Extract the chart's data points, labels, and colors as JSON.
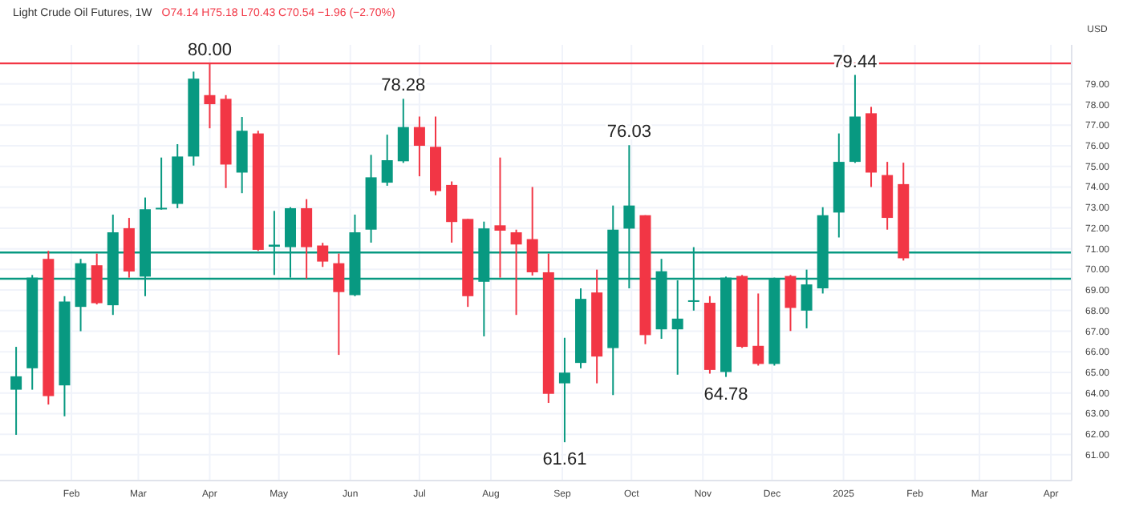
{
  "chart_data": {
    "type": "candlestick",
    "title": "Light Crude Oil Futures, 1W",
    "subtitle": "O74.14 H75.18 L70.43 C70.54 −1.96 (−2.70%)",
    "ylabel": "USD",
    "x": [
      "2024-01-08",
      "2024-01-15",
      "2024-01-22",
      "2024-01-29",
      "2024-02-05",
      "2024-02-12",
      "2024-02-19",
      "2024-02-26",
      "2024-03-04",
      "2024-03-11",
      "2024-03-18",
      "2024-03-25",
      "2024-04-01",
      "2024-04-08",
      "2024-04-15",
      "2024-04-22",
      "2024-04-29",
      "2024-05-06",
      "2024-05-13",
      "2024-05-20",
      "2024-05-27",
      "2024-06-03",
      "2024-06-10",
      "2024-06-17",
      "2024-06-24",
      "2024-07-01",
      "2024-07-08",
      "2024-07-15",
      "2024-07-22",
      "2024-07-29",
      "2024-08-05",
      "2024-08-12",
      "2024-08-19",
      "2024-08-26",
      "2024-09-02",
      "2024-09-09",
      "2024-09-16",
      "2024-09-23",
      "2024-09-30",
      "2024-10-07",
      "2024-10-14",
      "2024-10-21",
      "2024-10-28",
      "2024-11-04",
      "2024-11-11",
      "2024-11-18",
      "2024-11-25",
      "2024-12-02",
      "2024-12-09",
      "2024-12-16",
      "2024-12-23",
      "2024-12-30",
      "2025-01-06",
      "2025-01-13",
      "2025-01-20",
      "2025-01-27"
    ],
    "ohlc": [
      [
        64.16,
        66.24,
        61.97,
        64.81
      ],
      [
        65.2,
        69.73,
        64.16,
        69.6
      ],
      [
        70.51,
        70.9,
        63.44,
        63.85
      ],
      [
        64.37,
        68.7,
        62.87,
        68.44
      ],
      [
        68.18,
        70.51,
        67.0,
        70.3
      ],
      [
        70.2,
        70.77,
        68.3,
        68.36
      ],
      [
        68.26,
        72.66,
        67.79,
        71.8
      ],
      [
        72.0,
        72.5,
        69.6,
        69.9
      ],
      [
        69.65,
        73.49,
        68.7,
        72.92
      ],
      [
        72.96,
        75.43,
        72.9,
        72.99
      ],
      [
        73.18,
        76.08,
        72.97,
        75.48
      ],
      [
        75.48,
        79.6,
        75.04,
        79.26
      ],
      [
        78.46,
        80.0,
        76.85,
        78.02
      ],
      [
        78.28,
        78.46,
        73.95,
        75.09
      ],
      [
        74.7,
        77.4,
        73.7,
        76.73
      ],
      [
        76.6,
        76.73,
        70.9,
        70.95
      ],
      [
        71.1,
        72.84,
        69.73,
        71.2
      ],
      [
        71.08,
        73.02,
        69.6,
        72.97
      ],
      [
        72.97,
        73.41,
        69.55,
        71.08
      ],
      [
        71.16,
        71.29,
        70.12,
        70.38
      ],
      [
        70.3,
        70.77,
        65.85,
        68.9
      ],
      [
        68.75,
        72.66,
        68.7,
        71.8
      ],
      [
        71.93,
        75.56,
        71.3,
        74.47
      ],
      [
        74.21,
        76.54,
        74.06,
        75.3
      ],
      [
        75.25,
        78.28,
        75.17,
        76.91
      ],
      [
        76.91,
        77.42,
        74.52,
        76.0
      ],
      [
        75.95,
        77.42,
        73.6,
        73.8
      ],
      [
        74.1,
        74.27,
        71.3,
        72.3
      ],
      [
        72.45,
        72.45,
        68.18,
        68.7
      ],
      [
        69.4,
        72.32,
        66.75,
        71.99
      ],
      [
        72.14,
        75.43,
        69.6,
        71.88
      ],
      [
        71.8,
        71.93,
        67.79,
        71.21
      ],
      [
        71.47,
        74.0,
        69.7,
        69.86
      ],
      [
        69.86,
        70.77,
        63.52,
        63.96
      ],
      [
        64.47,
        66.68,
        61.61,
        64.99
      ],
      [
        65.46,
        69.08,
        65.2,
        68.57
      ],
      [
        68.88,
        69.99,
        64.47,
        65.77
      ],
      [
        66.18,
        73.1,
        63.9,
        71.93
      ],
      [
        71.98,
        76.03,
        69.08,
        73.1
      ],
      [
        72.63,
        72.63,
        66.37,
        66.81
      ],
      [
        67.09,
        70.51,
        66.63,
        69.91
      ],
      [
        67.09,
        69.47,
        64.89,
        67.61
      ],
      [
        68.48,
        71.08,
        68.0,
        68.5
      ],
      [
        68.38,
        68.7,
        64.94,
        65.12
      ],
      [
        65.02,
        69.65,
        64.78,
        69.6
      ],
      [
        69.68,
        69.73,
        66.19,
        66.24
      ],
      [
        66.29,
        68.83,
        65.33,
        65.41
      ],
      [
        65.41,
        69.6,
        65.33,
        69.55
      ],
      [
        69.68,
        69.73,
        67.01,
        68.13
      ],
      [
        68.0,
        69.99,
        67.14,
        69.27
      ],
      [
        69.08,
        73.02,
        68.83,
        72.63
      ],
      [
        72.76,
        76.6,
        71.55,
        75.22
      ],
      [
        75.22,
        79.44,
        75.17,
        77.42
      ],
      [
        77.58,
        77.89,
        74.0,
        74.7
      ],
      [
        74.58,
        75.22,
        71.93,
        72.5
      ],
      [
        74.14,
        75.18,
        70.43,
        70.54
      ]
    ],
    "xlim": [
      "2024-01-01",
      "2025-04-10"
    ],
    "xticks": [
      {
        "value": "2024-02-01",
        "label": "Feb"
      },
      {
        "value": "2024-03-01",
        "label": "Mar"
      },
      {
        "value": "2024-04-01",
        "label": "Apr"
      },
      {
        "value": "2024-05-01",
        "label": "May"
      },
      {
        "value": "2024-06-01",
        "label": "Jun"
      },
      {
        "value": "2024-07-01",
        "label": "Jul"
      },
      {
        "value": "2024-08-01",
        "label": "Aug"
      },
      {
        "value": "2024-09-01",
        "label": "Sep"
      },
      {
        "value": "2024-10-01",
        "label": "Oct"
      },
      {
        "value": "2024-11-01",
        "label": "Nov"
      },
      {
        "value": "2024-12-01",
        "label": "Dec"
      },
      {
        "value": "2025-01-01",
        "label": "2025"
      },
      {
        "value": "2025-02-01",
        "label": "Feb"
      },
      {
        "value": "2025-03-01",
        "label": "Mar"
      },
      {
        "value": "2025-04-01",
        "label": "Apr"
      }
    ],
    "ylim": [
      59.75,
      80.9
    ],
    "yticks": [
      {
        "value": 61,
        "label": "61.00"
      },
      {
        "value": 62,
        "label": "62.00"
      },
      {
        "value": 63,
        "label": "63.00"
      },
      {
        "value": 64,
        "label": "64.00"
      },
      {
        "value": 65,
        "label": "65.00"
      },
      {
        "value": 66,
        "label": "66.00"
      },
      {
        "value": 67,
        "label": "67.00"
      },
      {
        "value": 68,
        "label": "68.00"
      },
      {
        "value": 69,
        "label": "69.00"
      },
      {
        "value": 70,
        "label": "70.00"
      },
      {
        "value": 71,
        "label": "71.00"
      },
      {
        "value": 72,
        "label": "72.00"
      },
      {
        "value": 73,
        "label": "73.00"
      },
      {
        "value": 74,
        "label": "74.00"
      },
      {
        "value": 75,
        "label": "75.00"
      },
      {
        "value": 76,
        "label": "76.00"
      },
      {
        "value": 77,
        "label": "77.00"
      },
      {
        "value": 78,
        "label": "78.00"
      },
      {
        "value": 79,
        "label": "79.00"
      }
    ],
    "grid": true,
    "ref_lines": [
      {
        "axis": "y",
        "value": 80,
        "color": "#f23645"
      },
      {
        "axis": "y",
        "value": 70.82,
        "color": "#089981"
      },
      {
        "axis": "y",
        "value": 69.55,
        "color": "#089981"
      }
    ],
    "annotations": [
      {
        "text": "80.00",
        "x": "2024-04-01",
        "y": 80
      },
      {
        "text": "78.28",
        "x": "2024-06-24",
        "y": 78.28
      },
      {
        "text": "76.03",
        "x": "2024-09-30",
        "y": 76.03
      },
      {
        "text": "61.61",
        "x": "2024-09-02",
        "y": 61.61
      },
      {
        "text": "64.78",
        "x": "2024-11-11",
        "y": 64.78
      },
      {
        "text": "79.44",
        "x": "2025-01-06",
        "y": 79.44
      }
    ]
  }
}
